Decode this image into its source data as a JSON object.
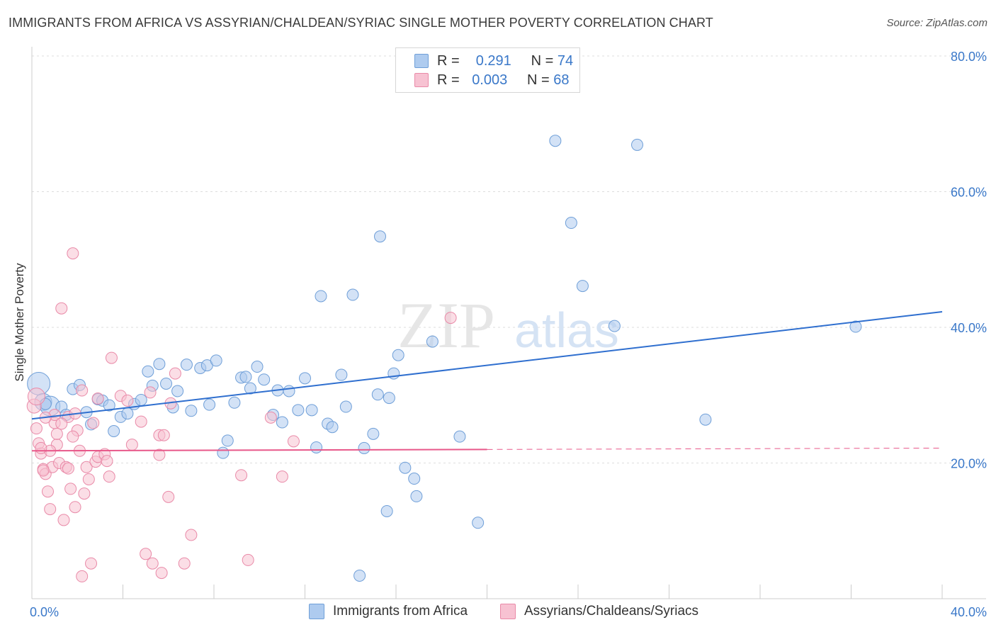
{
  "header": {
    "title": "IMMIGRANTS FROM AFRICA VS ASSYRIAN/CHALDEAN/SYRIAC SINGLE MOTHER POVERTY CORRELATION CHART",
    "source": "Source: ZipAtlas.com"
  },
  "legend": {
    "r_label": "R =",
    "n_label": "N =",
    "rows": [
      {
        "r": "0.291",
        "n": "74"
      },
      {
        "r": "0.003",
        "n": "68"
      }
    ]
  },
  "watermark": {
    "zip": "ZIP",
    "atlas": "atlas"
  },
  "colors": {
    "blue_fill": "#aecbef",
    "blue_stroke": "#6f9fd8",
    "blue_line": "#2f6fcf",
    "pink_fill": "#f7c2d2",
    "pink_stroke": "#e98aa8",
    "pink_line": "#e8588a",
    "axis_text": "#3a78c9",
    "grid": "#dddddd"
  },
  "chart_data": {
    "type": "scatter",
    "title": "IMMIGRANTS FROM AFRICA VS ASSYRIAN/CHALDEAN/SYRIAC SINGLE MOTHER POVERTY CORRELATION CHART",
    "xlabel": "",
    "ylabel": "Single Mother Poverty",
    "xlim": [
      0,
      40
    ],
    "ylim": [
      0,
      80
    ],
    "x_ticks": [
      "0.0%",
      "40.0%"
    ],
    "y_ticks": [
      {
        "value": 20,
        "label": "20.0%"
      },
      {
        "value": 40,
        "label": "40.0%"
      },
      {
        "value": 60,
        "label": "60.0%"
      },
      {
        "value": 80,
        "label": "80.0%"
      }
    ],
    "grid": true,
    "legend_position": "top-center",
    "series": [
      {
        "name": "Immigrants from Africa",
        "color": "#6f9fd8",
        "trend": {
          "x": [
            0,
            40
          ],
          "y": [
            26.5,
            42.3
          ],
          "dashed_from": null
        },
        "points": [
          [
            0.3,
            31.7,
            16
          ],
          [
            0.5,
            29.0,
            12
          ],
          [
            0.8,
            28.4,
            14
          ],
          [
            1.3,
            28.3,
            8
          ],
          [
            1.5,
            27.1,
            8
          ],
          [
            1.8,
            30.9,
            8
          ],
          [
            2.1,
            31.5,
            8
          ],
          [
            2.4,
            27.5,
            8
          ],
          [
            2.6,
            25.7,
            8
          ],
          [
            2.9,
            29.4,
            8
          ],
          [
            3.1,
            29.2,
            8
          ],
          [
            3.4,
            28.5,
            8
          ],
          [
            3.6,
            24.7,
            8
          ],
          [
            3.9,
            26.8,
            8
          ],
          [
            4.2,
            27.3,
            8
          ],
          [
            4.5,
            28.7,
            8
          ],
          [
            4.8,
            29.3,
            8
          ],
          [
            5.1,
            33.5,
            8
          ],
          [
            5.3,
            31.4,
            8
          ],
          [
            5.6,
            34.6,
            8
          ],
          [
            5.9,
            31.7,
            8
          ],
          [
            6.2,
            28.2,
            8
          ],
          [
            6.4,
            30.6,
            8
          ],
          [
            6.8,
            34.5,
            8
          ],
          [
            7.0,
            27.7,
            8
          ],
          [
            7.4,
            34.0,
            8
          ],
          [
            7.7,
            34.4,
            8
          ],
          [
            7.8,
            28.6,
            8
          ],
          [
            8.1,
            35.1,
            8
          ],
          [
            8.4,
            21.5,
            8
          ],
          [
            8.6,
            23.3,
            8
          ],
          [
            8.9,
            28.9,
            8
          ],
          [
            9.2,
            32.6,
            8
          ],
          [
            9.4,
            32.7,
            8
          ],
          [
            9.6,
            31.0,
            8
          ],
          [
            9.9,
            34.2,
            8
          ],
          [
            10.2,
            32.3,
            8
          ],
          [
            10.6,
            27.1,
            8
          ],
          [
            10.8,
            30.7,
            8
          ],
          [
            11.0,
            26.0,
            8
          ],
          [
            11.3,
            30.6,
            8
          ],
          [
            11.7,
            27.8,
            8
          ],
          [
            12.0,
            32.5,
            8
          ],
          [
            12.3,
            27.8,
            8
          ],
          [
            12.5,
            22.3,
            8
          ],
          [
            12.7,
            44.6,
            8
          ],
          [
            13.0,
            25.8,
            8
          ],
          [
            13.2,
            25.3,
            8
          ],
          [
            13.6,
            33.0,
            8
          ],
          [
            13.8,
            28.3,
            8
          ],
          [
            14.1,
            44.8,
            8
          ],
          [
            14.6,
            22.2,
            8
          ],
          [
            15.0,
            24.3,
            8
          ],
          [
            15.2,
            30.1,
            8
          ],
          [
            15.3,
            53.4,
            8
          ],
          [
            15.7,
            29.6,
            8
          ],
          [
            15.6,
            12.9,
            8
          ],
          [
            15.9,
            33.2,
            8
          ],
          [
            16.1,
            35.9,
            8
          ],
          [
            16.4,
            19.3,
            8
          ],
          [
            16.8,
            17.7,
            8
          ],
          [
            16.9,
            15.1,
            8
          ],
          [
            17.6,
            37.9,
            8
          ],
          [
            18.8,
            23.9,
            8
          ],
          [
            19.6,
            11.2,
            8
          ],
          [
            23.0,
            67.5,
            8
          ],
          [
            23.7,
            55.4,
            8
          ],
          [
            24.2,
            46.1,
            8
          ],
          [
            25.6,
            40.2,
            8
          ],
          [
            26.6,
            66.9,
            8
          ],
          [
            29.6,
            26.4,
            8
          ],
          [
            36.2,
            40.1,
            8
          ],
          [
            14.4,
            3.4,
            8
          ],
          [
            0.6,
            28.7,
            8
          ]
        ]
      },
      {
        "name": "Assyrians/Chaldeans/Syriacs",
        "color": "#e98aa8",
        "trend": {
          "x": [
            0,
            40
          ],
          "y": [
            21.8,
            22.2
          ],
          "dashed_from": 20
        },
        "points": [
          [
            0.1,
            28.4,
            10
          ],
          [
            0.2,
            25.1,
            8
          ],
          [
            0.3,
            22.9,
            8
          ],
          [
            0.4,
            21.4,
            8
          ],
          [
            0.5,
            19.1,
            8
          ],
          [
            0.6,
            18.4,
            8
          ],
          [
            0.7,
            15.8,
            8
          ],
          [
            0.8,
            13.2,
            8
          ],
          [
            0.9,
            19.4,
            8
          ],
          [
            1.0,
            25.9,
            8
          ],
          [
            1.1,
            22.7,
            8
          ],
          [
            1.2,
            20.0,
            8
          ],
          [
            1.3,
            42.8,
            8
          ],
          [
            1.4,
            11.6,
            8
          ],
          [
            1.5,
            19.4,
            8
          ],
          [
            1.6,
            26.8,
            8
          ],
          [
            1.7,
            16.2,
            8
          ],
          [
            1.8,
            50.9,
            8
          ],
          [
            1.9,
            13.5,
            8
          ],
          [
            2.0,
            24.8,
            8
          ],
          [
            2.1,
            21.8,
            8
          ],
          [
            2.2,
            3.3,
            8
          ],
          [
            2.3,
            15.5,
            8
          ],
          [
            2.4,
            19.4,
            8
          ],
          [
            2.5,
            17.6,
            8
          ],
          [
            2.6,
            5.2,
            8
          ],
          [
            2.7,
            25.9,
            8
          ],
          [
            2.8,
            20.2,
            8
          ],
          [
            2.9,
            20.9,
            8
          ],
          [
            3.2,
            21.3,
            8
          ],
          [
            3.3,
            20.3,
            8
          ],
          [
            3.4,
            18.0,
            8
          ],
          [
            3.5,
            35.5,
            8
          ],
          [
            3.9,
            29.9,
            8
          ],
          [
            4.2,
            29.2,
            8
          ],
          [
            4.4,
            22.7,
            8
          ],
          [
            4.8,
            26.1,
            8
          ],
          [
            5.0,
            6.6,
            8
          ],
          [
            5.2,
            30.4,
            8
          ],
          [
            5.3,
            5.2,
            8
          ],
          [
            5.6,
            24.1,
            8
          ],
          [
            5.6,
            21.2,
            8
          ],
          [
            5.7,
            3.8,
            8
          ],
          [
            5.8,
            24.1,
            8
          ],
          [
            6.0,
            15.0,
            8
          ],
          [
            6.1,
            28.8,
            8
          ],
          [
            6.3,
            33.2,
            8
          ],
          [
            6.7,
            5.2,
            8
          ],
          [
            7.0,
            9.4,
            8
          ],
          [
            9.2,
            18.2,
            8
          ],
          [
            9.5,
            5.7,
            8
          ],
          [
            10.5,
            26.7,
            8
          ],
          [
            11.0,
            18.0,
            8
          ],
          [
            11.5,
            23.2,
            8
          ],
          [
            18.4,
            41.4,
            8
          ],
          [
            0.2,
            29.8,
            12
          ],
          [
            0.5,
            18.9,
            8
          ],
          [
            1.0,
            27.1,
            8
          ],
          [
            1.3,
            25.8,
            8
          ],
          [
            1.6,
            19.2,
            8
          ],
          [
            2.2,
            30.7,
            8
          ],
          [
            0.8,
            21.8,
            8
          ],
          [
            1.8,
            23.9,
            8
          ],
          [
            0.4,
            22.2,
            8
          ],
          [
            2.9,
            29.5,
            8
          ],
          [
            1.1,
            24.3,
            8
          ],
          [
            0.6,
            26.7,
            8
          ],
          [
            1.9,
            27.3,
            8
          ]
        ]
      }
    ]
  },
  "bottom_legend": [
    {
      "label": "Immigrants from Africa"
    },
    {
      "label": "Assyrians/Chaldeans/Syriacs"
    }
  ]
}
